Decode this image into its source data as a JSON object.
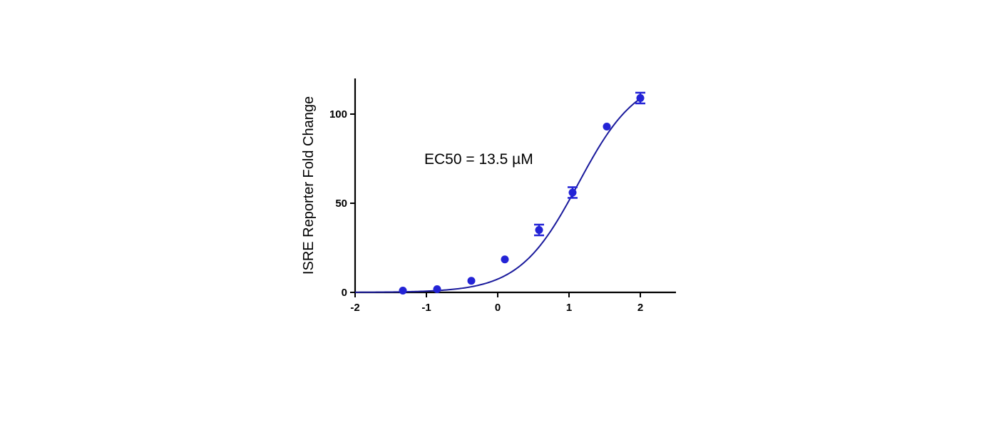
{
  "chart_data": {
    "type": "scatter",
    "title": "",
    "xlabel": "",
    "ylabel": "ISRE Reporter Fold Change",
    "xlim": [
      -2,
      2.5
    ],
    "ylim": [
      0,
      120
    ],
    "x_ticks": [
      -2,
      -1,
      0,
      1,
      2
    ],
    "x_tick_labels": [
      "-2",
      "-1",
      "0",
      "1",
      "2"
    ],
    "y_ticks": [
      0,
      50,
      100
    ],
    "y_tick_labels": [
      "0",
      "50",
      "100"
    ],
    "grid": false,
    "legend": "none",
    "annotation": "EC50 = 13.5 µM",
    "series": [
      {
        "x": [
          -1.33,
          -0.85,
          -0.37,
          0.1,
          0.58,
          1.05,
          1.53,
          2.0
        ],
        "y": [
          1,
          1.8,
          6.5,
          18.5,
          35,
          56,
          93,
          109
        ],
        "error": [
          0.5,
          0.5,
          0.8,
          0.8,
          3,
          3,
          0.8,
          3
        ],
        "color": "#2323d6"
      }
    ],
    "fit_curve": {
      "model": "four-parameter logistic",
      "color": "#1a1a9c",
      "bottom": 0,
      "top": 122,
      "log_ec50": 1.13,
      "hill_slope": 1.05
    }
  }
}
